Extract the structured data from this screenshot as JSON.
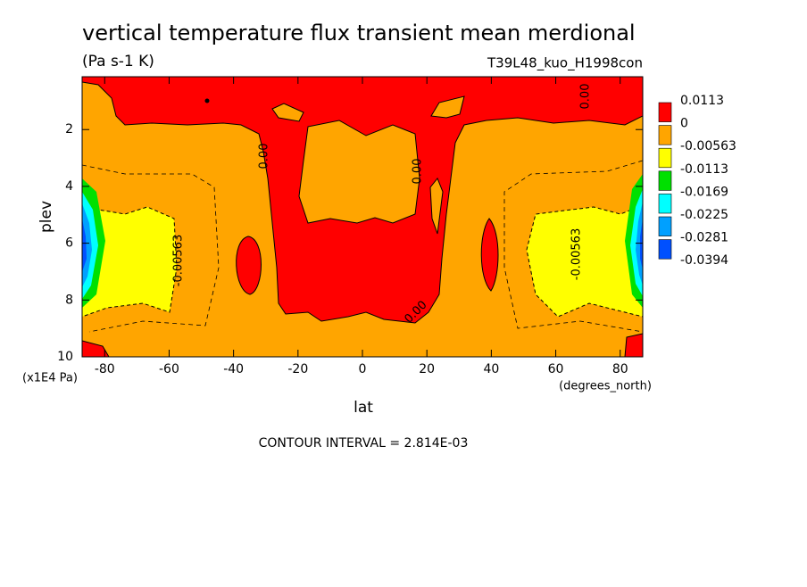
{
  "chart_data": {
    "type": "contour",
    "title": "vertical temperature flux transient mean merdional",
    "subtitle": "(Pa s-1 K)",
    "dataset": "T39L48_kuo_H1998con",
    "x_label": "lat",
    "x_units": "(degrees_north)",
    "y_label": "plev",
    "y_units": "(x1E4 Pa)",
    "footer": "CONTOUR INTERVAL = 2.814E-03",
    "xlim": [
      -87,
      87
    ],
    "xticks": [
      -80,
      -60,
      -40,
      -20,
      0,
      20,
      40,
      60,
      80
    ],
    "ylim": [
      10,
      0.14
    ],
    "yticks": [
      2,
      4,
      6,
      8,
      10
    ],
    "levels": [
      0.0113,
      0,
      -0.00563,
      -0.0113,
      -0.0169,
      -0.0225,
      -0.0281,
      -0.0394
    ],
    "colors": [
      "#ff0000",
      "#ffa500",
      "#ffff00",
      "#00e000",
      "#00ffff",
      "#00a0ff",
      "#0050ff"
    ],
    "contour_labels": [
      "0.00",
      "0.00",
      "0.00",
      "0.00",
      "-0.00563",
      "-0.00563"
    ]
  }
}
